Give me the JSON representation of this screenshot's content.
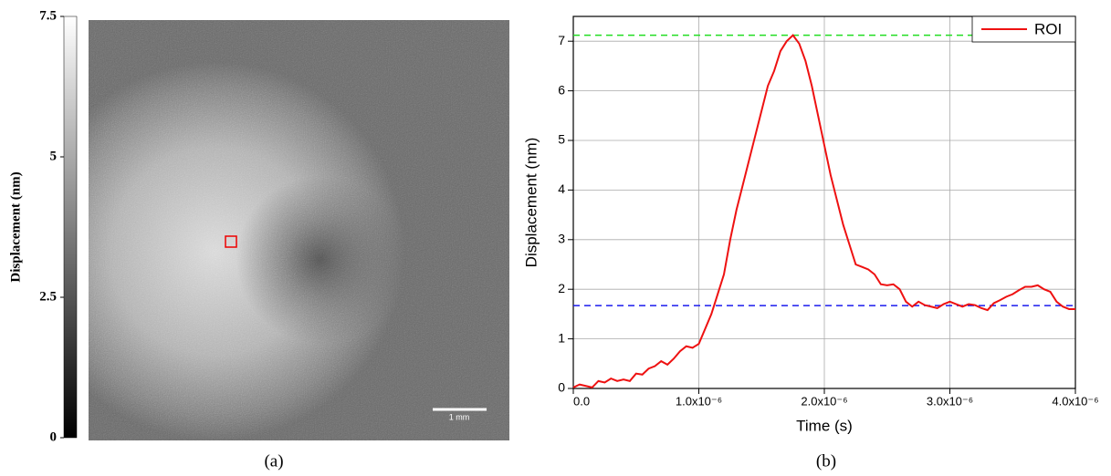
{
  "chart_data": [
    {
      "type": "image",
      "colorbar_label": "Displacement (nm)",
      "colorbar_lim": [
        0,
        7.5
      ],
      "colorbar_ticks": [
        0,
        2.5,
        5,
        7.5
      ],
      "scale_bar_label": "1 mm",
      "caption": "(a)"
    },
    {
      "type": "line",
      "xlabel": "Time (s)",
      "ylabel": "Displacement (nm)",
      "caption": "(b)",
      "xlim": [
        0,
        4e-06
      ],
      "ylim": [
        0,
        7.5
      ],
      "xticks": [
        {
          "value": 0,
          "label": "0.0"
        },
        {
          "value": 1e-06,
          "label": "1.0x10⁻⁶"
        },
        {
          "value": 2e-06,
          "label": "2.0x10⁻⁶"
        },
        {
          "value": 3e-06,
          "label": "3.0x10⁻⁶"
        },
        {
          "value": 4e-06,
          "label": "4.0x10⁻⁶"
        }
      ],
      "yticks": [
        0,
        1,
        2,
        3,
        4,
        5,
        6,
        7
      ],
      "grid": true,
      "legend": "upper right",
      "hlines": [
        {
          "value": 7.12,
          "color": "#22dd22"
        },
        {
          "value": 1.67,
          "color": "#1a1aee"
        }
      ],
      "x": [
        0,
        5e-08,
        1e-07,
        1.5e-07,
        2e-07,
        2.5e-07,
        3e-07,
        3.5e-07,
        4e-07,
        4.5e-07,
        5e-07,
        5.5e-07,
        6e-07,
        6.5e-07,
        7e-07,
        7.5e-07,
        8e-07,
        8.5e-07,
        9e-07,
        9.5e-07,
        1e-06,
        1.05e-06,
        1.1e-06,
        1.15e-06,
        1.2e-06,
        1.25e-06,
        1.3e-06,
        1.35e-06,
        1.4e-06,
        1.45e-06,
        1.5e-06,
        1.55e-06,
        1.6e-06,
        1.65e-06,
        1.7e-06,
        1.75e-06,
        1.8e-06,
        1.85e-06,
        1.9e-06,
        1.95e-06,
        2e-06,
        2.05e-06,
        2.1e-06,
        2.15e-06,
        2.2e-06,
        2.25e-06,
        2.3e-06,
        2.35e-06,
        2.4e-06,
        2.45e-06,
        2.5e-06,
        2.55e-06,
        2.6e-06,
        2.65e-06,
        2.7e-06,
        2.75e-06,
        2.8e-06,
        2.85e-06,
        2.9e-06,
        2.95e-06,
        3e-06,
        3.05e-06,
        3.1e-06,
        3.15e-06,
        3.2e-06,
        3.25e-06,
        3.3e-06,
        3.35e-06,
        3.4e-06,
        3.45e-06,
        3.5e-06,
        3.55e-06,
        3.6e-06,
        3.65e-06,
        3.7e-06,
        3.75e-06,
        3.8e-06,
        3.85e-06,
        3.9e-06,
        3.95e-06,
        4e-06
      ],
      "series": [
        {
          "name": "ROI",
          "color": "#ee1111",
          "values": [
            0.02,
            0.08,
            0.05,
            0.02,
            0.15,
            0.12,
            0.2,
            0.15,
            0.18,
            0.15,
            0.3,
            0.28,
            0.4,
            0.45,
            0.55,
            0.48,
            0.6,
            0.75,
            0.85,
            0.82,
            0.9,
            1.2,
            1.5,
            1.9,
            2.3,
            3.0,
            3.6,
            4.1,
            4.6,
            5.1,
            5.6,
            6.1,
            6.4,
            6.8,
            7.0,
            7.12,
            6.95,
            6.6,
            6.1,
            5.5,
            4.9,
            4.3,
            3.8,
            3.3,
            2.9,
            2.5,
            2.45,
            2.4,
            2.3,
            2.1,
            2.08,
            2.1,
            2.0,
            1.75,
            1.65,
            1.75,
            1.68,
            1.65,
            1.62,
            1.7,
            1.75,
            1.7,
            1.65,
            1.7,
            1.68,
            1.62,
            1.58,
            1.72,
            1.78,
            1.85,
            1.9,
            1.98,
            2.05,
            2.05,
            2.08,
            2.0,
            1.95,
            1.75,
            1.65,
            1.6,
            1.6
          ]
        }
      ]
    }
  ]
}
